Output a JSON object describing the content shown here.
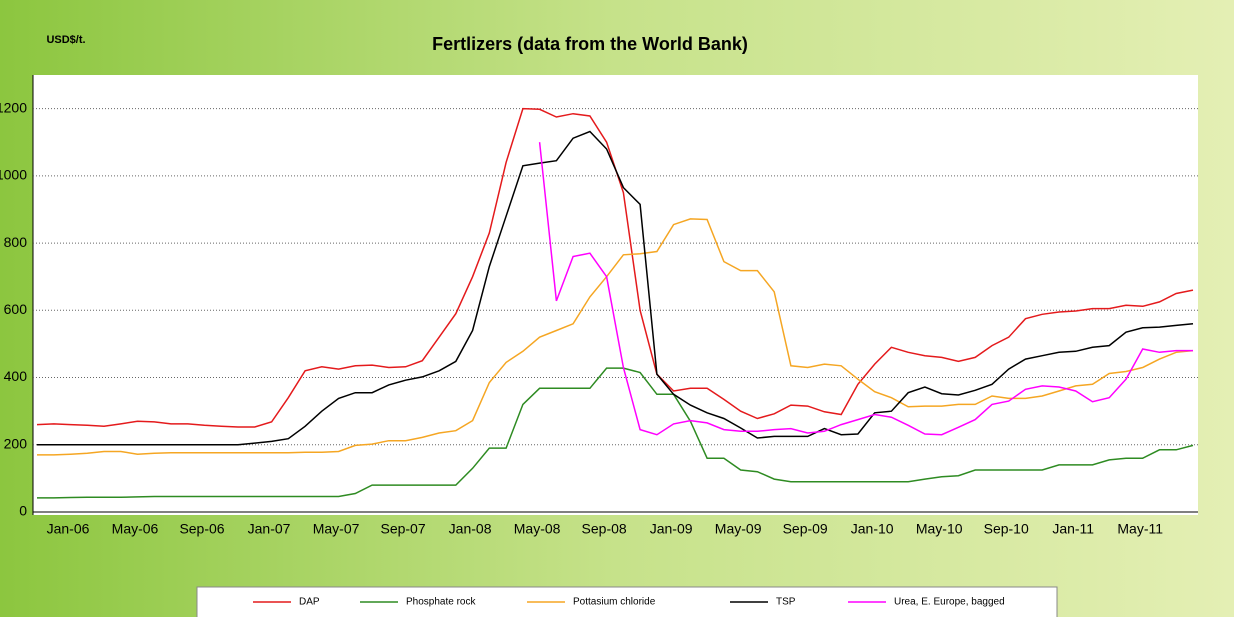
{
  "chart_data": {
    "type": "line",
    "title": "Fertlizers (data from the World Bank)",
    "y_label": "USD$/t.",
    "categories": [
      "Jan-06",
      null,
      null,
      null,
      "May-06",
      null,
      null,
      null,
      "Sep-06",
      null,
      null,
      null,
      "Jan-07",
      null,
      null,
      null,
      "May-07",
      null,
      null,
      null,
      "Sep-07",
      null,
      null,
      null,
      "Jan-08",
      null,
      null,
      null,
      "May-08",
      null,
      null,
      null,
      "Sep-08",
      null,
      null,
      null,
      "Jan-09",
      null,
      null,
      null,
      "May-09",
      null,
      null,
      null,
      "Sep-09",
      null,
      null,
      null,
      "Jan-10",
      null,
      null,
      null,
      "May-10",
      null,
      null,
      null,
      "Sep-10",
      null,
      null,
      null,
      "Jan-11",
      null,
      null,
      null,
      "May-11",
      null,
      null,
      null,
      null,
      null
    ],
    "series": [
      {
        "name": "DAP",
        "color": "#e41a1c",
        "values": [
          260,
          262,
          260,
          258,
          255,
          262,
          270,
          268,
          262,
          262,
          258,
          255,
          253,
          253,
          268,
          340,
          420,
          432,
          425,
          435,
          437,
          430,
          432,
          450,
          520,
          590,
          700,
          830,
          1040,
          1200,
          1198,
          1175,
          1185,
          1178,
          1100,
          950,
          600,
          410,
          360,
          368,
          368,
          335,
          300,
          278,
          292,
          318,
          315,
          298,
          290,
          380,
          440,
          490,
          475,
          465,
          460,
          448,
          460,
          495,
          520,
          575,
          588,
          595,
          598,
          605,
          605,
          615,
          612,
          625,
          650,
          660
        ]
      },
      {
        "name": "Phosphate rock",
        "color": "#2e8b22",
        "values": [
          42,
          42,
          43,
          44,
          44,
          44,
          45,
          46,
          46,
          46,
          46,
          46,
          46,
          46,
          46,
          46,
          46,
          46,
          46,
          55,
          80,
          80,
          80,
          80,
          80,
          80,
          130,
          190,
          190,
          320,
          368,
          368,
          368,
          368,
          428,
          428,
          415,
          350,
          350,
          270,
          160,
          160,
          125,
          120,
          98,
          90,
          90,
          90,
          90,
          90,
          90,
          90,
          90,
          98,
          105,
          108,
          125,
          125,
          125,
          125,
          125,
          140,
          140,
          140,
          155,
          160,
          160,
          185,
          185,
          198
        ]
      },
      {
        "name": "Pottasium chloride",
        "color": "#f5a623",
        "values": [
          170,
          170,
          172,
          175,
          180,
          180,
          172,
          175,
          176,
          176,
          176,
          176,
          176,
          176,
          176,
          176,
          178,
          178,
          180,
          198,
          202,
          212,
          212,
          222,
          235,
          242,
          272,
          385,
          445,
          478,
          520,
          540,
          560,
          640,
          700,
          765,
          768,
          775,
          855,
          872,
          870,
          745,
          718,
          718,
          655,
          435,
          430,
          440,
          435,
          395,
          358,
          340,
          313,
          315,
          315,
          320,
          320,
          345,
          338,
          338,
          345,
          360,
          375,
          380,
          412,
          418,
          430,
          455,
          475,
          480
        ]
      },
      {
        "name": "TSP",
        "color": "#000000",
        "values": [
          200,
          200,
          200,
          200,
          200,
          200,
          200,
          200,
          200,
          200,
          200,
          200,
          200,
          205,
          210,
          218,
          255,
          300,
          338,
          355,
          355,
          378,
          392,
          402,
          420,
          448,
          540,
          730,
          880,
          1030,
          1038,
          1045,
          1112,
          1132,
          1080,
          965,
          915,
          410,
          350,
          318,
          295,
          278,
          250,
          220,
          225,
          225,
          225,
          248,
          230,
          232,
          295,
          300,
          355,
          372,
          352,
          348,
          362,
          380,
          425,
          455,
          465,
          475,
          478,
          490,
          495,
          535,
          548,
          550,
          555,
          560
        ]
      },
      {
        "name": "Urea, E. Europe, bagged",
        "color": "#ff00ff",
        "values": [
          null,
          null,
          null,
          null,
          null,
          null,
          null,
          null,
          null,
          null,
          null,
          null,
          null,
          null,
          null,
          null,
          null,
          null,
          null,
          null,
          null,
          null,
          null,
          null,
          null,
          null,
          null,
          null,
          null,
          null,
          1100,
          628,
          760,
          770,
          700,
          430,
          245,
          230,
          262,
          272,
          265,
          245,
          240,
          240,
          245,
          248,
          235,
          240,
          260,
          275,
          290,
          282,
          258,
          232,
          230,
          252,
          275,
          320,
          330,
          365,
          375,
          372,
          360,
          328,
          340,
          395,
          485,
          475,
          480,
          480
        ]
      }
    ],
    "ylim": [
      0,
      1300
    ],
    "yticks": [
      0,
      200,
      400,
      600,
      800,
      1000,
      1200
    ],
    "grid": true,
    "legend": "bottom"
  }
}
